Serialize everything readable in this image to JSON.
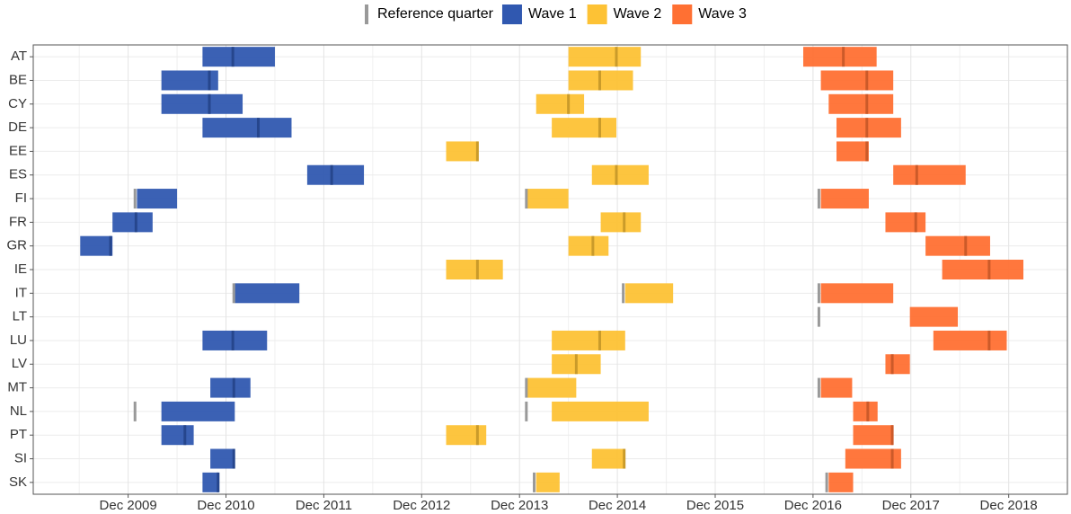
{
  "chart_data": {
    "type": "timeline",
    "categories": [
      "AT",
      "BE",
      "CY",
      "DE",
      "EE",
      "ES",
      "FI",
      "FR",
      "GR",
      "IE",
      "IT",
      "LT",
      "LU",
      "LV",
      "MT",
      "NL",
      "PT",
      "SI",
      "SK"
    ],
    "reference_legend": {
      "name": "Reference quarter",
      "color": "#999999"
    },
    "series": [
      {
        "name": "Wave 1",
        "color": "#3058b0",
        "start": [
          2010.68,
          2010.26,
          2010.26,
          2010.68,
          null,
          2011.75,
          2010.01,
          2009.76,
          2009.43,
          null,
          2011.01,
          null,
          2010.68,
          null,
          2010.76,
          2010.26,
          2010.26,
          2010.76,
          2010.68
        ],
        "end": [
          2011.42,
          2010.84,
          2011.09,
          2011.59,
          null,
          2012.33,
          2010.42,
          2010.17,
          2009.76,
          null,
          2011.67,
          null,
          2011.34,
          null,
          2011.17,
          2011.01,
          2010.59,
          2011.01,
          2010.84
        ],
        "reference": [
          2010.99,
          2010.75,
          2010.75,
          2011.25,
          null,
          2012.0,
          2009.99,
          2010.0,
          2009.74,
          null,
          2011.0,
          null,
          2010.99,
          null,
          2011.0,
          2009.99,
          2010.5,
          2011.0,
          2010.84
        ]
      },
      {
        "name": "Wave 2",
        "color": "#fdc235",
        "start": [
          2014.42,
          2014.42,
          2014.09,
          2014.25,
          2013.17,
          2014.66,
          2014.0,
          2014.75,
          2014.42,
          2013.17,
          2015.0,
          null,
          2014.25,
          2014.25,
          2014.0,
          2014.25,
          2013.17,
          2014.66,
          2014.09
        ],
        "end": [
          2015.16,
          2015.08,
          2014.58,
          2014.91,
          2013.5,
          2015.24,
          2014.42,
          2015.16,
          2014.83,
          2013.75,
          2015.49,
          null,
          2015.0,
          2014.75,
          2014.5,
          2015.24,
          2013.58,
          2015.0,
          2014.33
        ],
        "reference": [
          2014.91,
          2014.74,
          2014.42,
          2014.74,
          2013.49,
          2014.91,
          2013.99,
          2014.99,
          2014.67,
          2013.49,
          2014.98,
          null,
          2014.74,
          2014.5,
          2013.99,
          2013.99,
          2013.49,
          2014.99,
          2014.07
        ]
      },
      {
        "name": "Wave 3",
        "color": "#ff7033",
        "start": [
          2016.82,
          2017.0,
          2017.08,
          2017.16,
          2017.16,
          2017.74,
          2017.0,
          2017.66,
          2018.07,
          2018.24,
          2017.0,
          2017.91,
          2018.15,
          2017.66,
          2017.0,
          2017.33,
          2017.33,
          2017.25,
          2017.08
        ],
        "end": [
          2017.57,
          2017.74,
          2017.74,
          2017.82,
          2017.49,
          2018.48,
          2017.49,
          2018.07,
          2018.73,
          2019.07,
          2017.74,
          2018.4,
          2018.9,
          2017.91,
          2017.32,
          2017.58,
          2017.74,
          2017.82,
          2017.33
        ],
        "reference": [
          2017.23,
          2017.47,
          2017.47,
          2017.47,
          2017.47,
          2017.98,
          2016.98,
          2017.97,
          2018.48,
          2018.72,
          2016.98,
          2016.98,
          2018.72,
          2017.73,
          2016.98,
          2017.48,
          2017.73,
          2017.73,
          2017.06
        ]
      }
    ],
    "xlim": [
      2008.95,
      2019.52
    ],
    "xticks": [
      {
        "value": 2009.92,
        "label": "Dec 2009"
      },
      {
        "value": 2010.92,
        "label": "Dec 2010"
      },
      {
        "value": 2011.92,
        "label": "Dec 2011"
      },
      {
        "value": 2012.92,
        "label": "Dec 2012"
      },
      {
        "value": 2013.92,
        "label": "Dec 2013"
      },
      {
        "value": 2014.92,
        "label": "Dec 2014"
      },
      {
        "value": 2015.92,
        "label": "Dec 2015"
      },
      {
        "value": 2016.92,
        "label": "Dec 2016"
      },
      {
        "value": 2017.92,
        "label": "Dec 2017"
      },
      {
        "value": 2018.92,
        "label": "Dec 2018"
      }
    ],
    "grid": true,
    "legend": "top"
  }
}
